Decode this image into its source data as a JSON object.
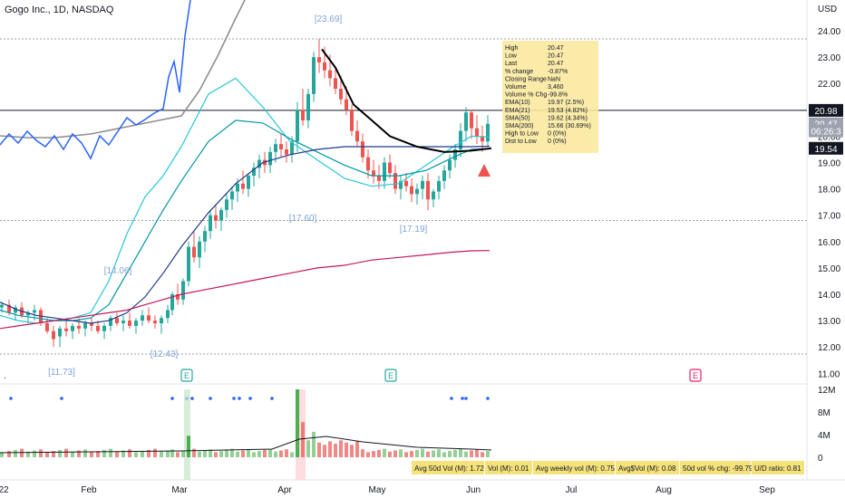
{
  "title": "Gogo Inc., 1D, NASDAQ",
  "currency": "USD",
  "price_axis": {
    "ticks": [
      "24.00",
      "23.00",
      "22.00",
      "21.00",
      "20.00",
      "19.00",
      "18.00",
      "17.00",
      "16.00",
      "15.00",
      "14.00",
      "13.00",
      "12.00",
      "11.00"
    ],
    "badges": [
      {
        "label": "20.98",
        "value": 20.98,
        "style": "dark"
      },
      {
        "label": "20.47",
        "value": 20.47,
        "style": "grey"
      },
      {
        "label": "06:26:3",
        "value": 20.2,
        "style": "grey"
      },
      {
        "label": "19.54",
        "value": 19.54,
        "style": "dark"
      }
    ]
  },
  "volume_axis": {
    "ticks": [
      "12M",
      "8M",
      "4M",
      "0"
    ]
  },
  "time_axis": {
    "ticks": [
      "22",
      "Feb",
      "Mar",
      "Apr",
      "May",
      "Jun",
      "Jul",
      "Aug",
      "Sep"
    ]
  },
  "price_labels": [
    "[23.69]",
    "[14.06]",
    "[17.60]",
    "[17.19]",
    "[12.43]",
    "[11.73]"
  ],
  "earnings_markers": [
    "E",
    "E",
    "E"
  ],
  "info_box": {
    "rows": [
      {
        "label": "High",
        "value": "20.47"
      },
      {
        "label": "Low",
        "value": "20.47"
      },
      {
        "label": "Last",
        "value": "20.47"
      },
      {
        "label": "% change",
        "value": "-0.87%"
      },
      {
        "label": "Closing Range",
        "value": "NaN"
      },
      {
        "label": "Volume",
        "value": "3,460"
      },
      {
        "label": "Volume % Chg",
        "value": "-99.8%"
      },
      {
        "label": "EMA(10)",
        "value": "19.97 (2.5%)"
      },
      {
        "label": "EMA(21)",
        "value": "19.53 (4.82%)"
      },
      {
        "label": "SMA(50)",
        "value": "19.62 (4.34%)"
      },
      {
        "label": "SMA(200)",
        "value": "15.66 (30.69%)"
      },
      {
        "label": "High to Low",
        "value": "0 (0%)"
      },
      {
        "label": "Dist to Low",
        "value": "0 (0%)"
      }
    ]
  },
  "stats_bar": [
    "Avg 50d Vol (M): 1.72",
    "Vol (M): 0.01",
    "Avg weekly vol (M): 0.75",
    "Avg$Vol (M): 0.08",
    "50d vol % chg: -99.79",
    "U/D ratio: 0.81"
  ],
  "colors": {
    "up": "#26a69a",
    "down": "#ef5350",
    "ema10": "#26c6da",
    "ema21": "#0097a7",
    "sma50": "#000000",
    "sma150": "#1e3a8a",
    "sma200": "#c2185b",
    "rs_line": "#8e8e8e",
    "info_bg": "#fbe9a0",
    "stats_bg": "#f5e27a",
    "earnings": "#26a69a",
    "earnings_future": "#e91e63"
  },
  "chart_data": {
    "type": "candlestick",
    "symbol": "GOGO",
    "interval": "1D",
    "ylim": [
      11.0,
      24.6
    ],
    "volume_ylim": [
      0,
      12
    ],
    "series": [
      {
        "name": "EMA(10)",
        "values": [
          13.2,
          13.0,
          12.9,
          13.0,
          13.1,
          13.3,
          14.5,
          16.3,
          17.7,
          18.5,
          19.6,
          21.6,
          22.2,
          21.1,
          19.8,
          19.1,
          18.4,
          18.1,
          18.2,
          18.9,
          19.6,
          20.0,
          19.97
        ]
      },
      {
        "name": "EMA(21)",
        "values": [
          13.4,
          13.2,
          13.1,
          13.0,
          13.0,
          13.1,
          13.6,
          14.8,
          16.0,
          17.2,
          18.3,
          19.8,
          20.6,
          20.5,
          19.9,
          19.4,
          18.9,
          18.5,
          18.5,
          18.7,
          19.2,
          19.5,
          19.53
        ]
      },
      {
        "name": "SMA(50)",
        "values": [
          13.7,
          13.4,
          13.2,
          13.1,
          13.0,
          12.9,
          13.0,
          13.3,
          13.9,
          14.8,
          15.8,
          17.1,
          18.2,
          19.0,
          19.3,
          19.5,
          19.6,
          19.6,
          19.6,
          19.6,
          19.6,
          19.6,
          19.62
        ]
      },
      {
        "name": "SMA(200)",
        "values": [
          12.7,
          12.8,
          12.9,
          13.0,
          13.1,
          13.2,
          13.3,
          13.4,
          13.6,
          13.8,
          14.0,
          14.2,
          14.4,
          14.6,
          14.8,
          15.0,
          15.1,
          15.3,
          15.4,
          15.5,
          15.6,
          15.65,
          15.66
        ]
      }
    ]
  }
}
